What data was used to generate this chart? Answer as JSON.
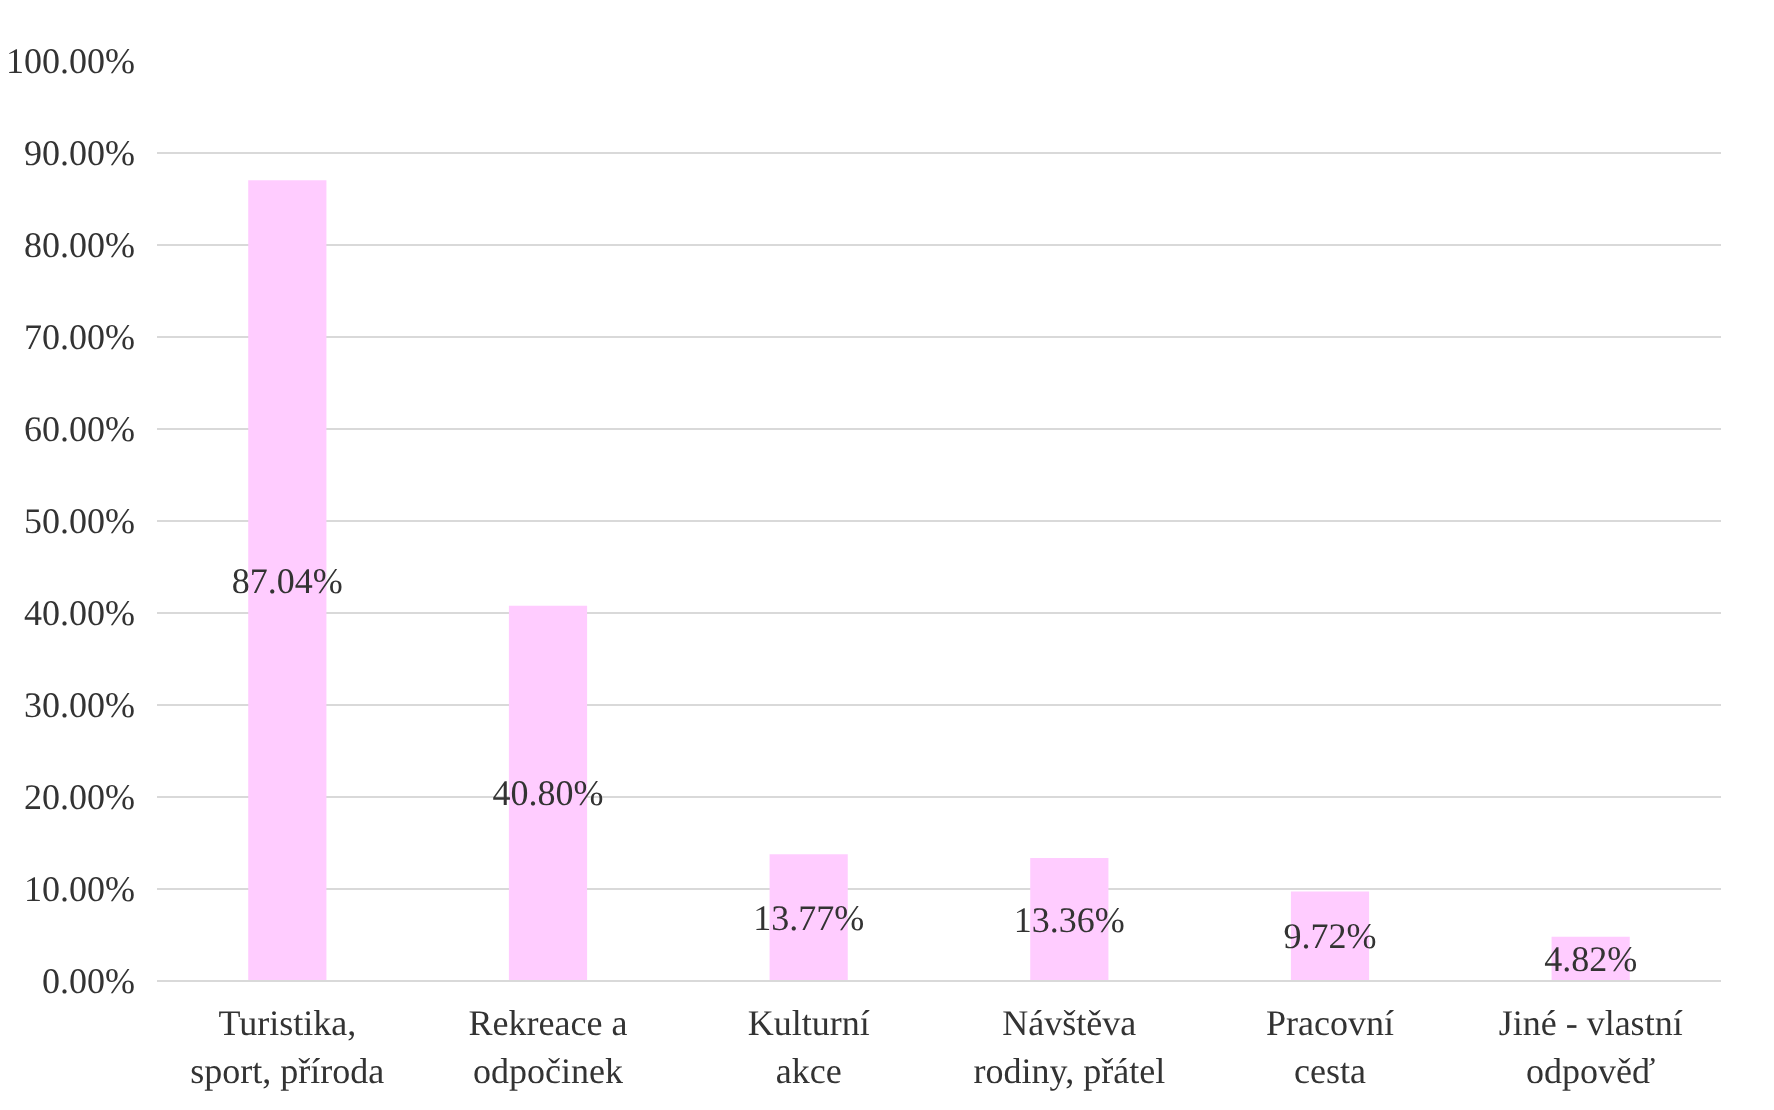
{
  "chart_data": {
    "type": "bar",
    "categories": [
      "Turistika,\nsport, příroda",
      "Rekreace a\nodpočinek",
      "Kulturní\nakce",
      "Návštěva\nrodiny, přátel",
      "Pracovní\ncesta",
      "Jiné - vlastní\nodpověď"
    ],
    "values": [
      87.04,
      40.8,
      13.77,
      13.36,
      9.72,
      4.82
    ],
    "value_labels": [
      "87.04%",
      "40.80%",
      "13.77%",
      "13.36%",
      "9.72%",
      "4.82%"
    ],
    "color": "#ffccff",
    "ylim": [
      0,
      100
    ],
    "yticks": [
      {
        "value": 0,
        "label": "0.00%"
      },
      {
        "value": 10,
        "label": "10.00%"
      },
      {
        "value": 20,
        "label": "20.00%"
      },
      {
        "value": 30,
        "label": "30.00%"
      },
      {
        "value": 40,
        "label": "40.00%"
      },
      {
        "value": 50,
        "label": "50.00%"
      },
      {
        "value": 60,
        "label": "60.00%"
      },
      {
        "value": 70,
        "label": "70.00%"
      },
      {
        "value": 80,
        "label": "80.00%"
      },
      {
        "value": 90,
        "label": "90.00%"
      },
      {
        "value": 100,
        "label": "100.00%"
      }
    ],
    "grid": "y"
  }
}
